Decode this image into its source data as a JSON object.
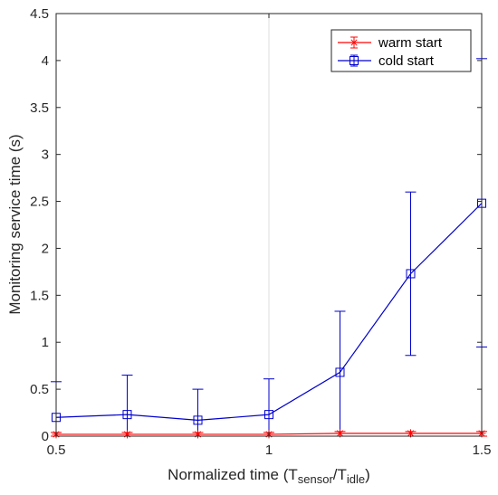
{
  "chart_data": {
    "type": "line",
    "title": "",
    "xlabel": {
      "main": "Normalized time (T",
      "sub1": "sensor",
      "mid": "/T",
      "sub2": "idle",
      "end": ")"
    },
    "ylabel": "Monitoring service time (s)",
    "xlim": [
      0.5,
      1.5
    ],
    "ylim": [
      0,
      4.5
    ],
    "x_ticks": [
      0.5,
      1,
      1.5
    ],
    "y_ticks": [
      0,
      0.5,
      1,
      1.5,
      2,
      2.5,
      3,
      3.5,
      4,
      4.5
    ],
    "x_tick_labels": [
      "0.5",
      "1",
      "1.5"
    ],
    "y_tick_labels": [
      "0",
      "0.5",
      "1",
      "1.5",
      "2",
      "2.5",
      "3",
      "3.5",
      "4",
      "4.5"
    ],
    "grid": "x-major only",
    "legend_position": "top-right",
    "x": [
      0.5,
      0.667,
      0.833,
      1.0,
      1.167,
      1.333,
      1.5
    ],
    "series": [
      {
        "name": "warm start",
        "color": "#ff0000",
        "marker": "asterisk",
        "values": [
          0.02,
          0.02,
          0.02,
          0.02,
          0.03,
          0.03,
          0.03
        ],
        "err_low": [
          0.0,
          0.0,
          0.0,
          0.0,
          0.0,
          0.0,
          0.0
        ],
        "err_high": [
          0.04,
          0.04,
          0.04,
          0.04,
          0.05,
          0.05,
          0.05
        ]
      },
      {
        "name": "cold start",
        "color": "#0000cc",
        "marker": "square",
        "values": [
          0.2,
          0.23,
          0.17,
          0.23,
          0.68,
          1.73,
          2.48
        ],
        "err_low": [
          0.0,
          0.0,
          0.0,
          0.0,
          0.0,
          0.86,
          0.95
        ],
        "err_high": [
          0.58,
          0.65,
          0.5,
          0.61,
          1.33,
          2.6,
          4.02
        ]
      }
    ]
  }
}
